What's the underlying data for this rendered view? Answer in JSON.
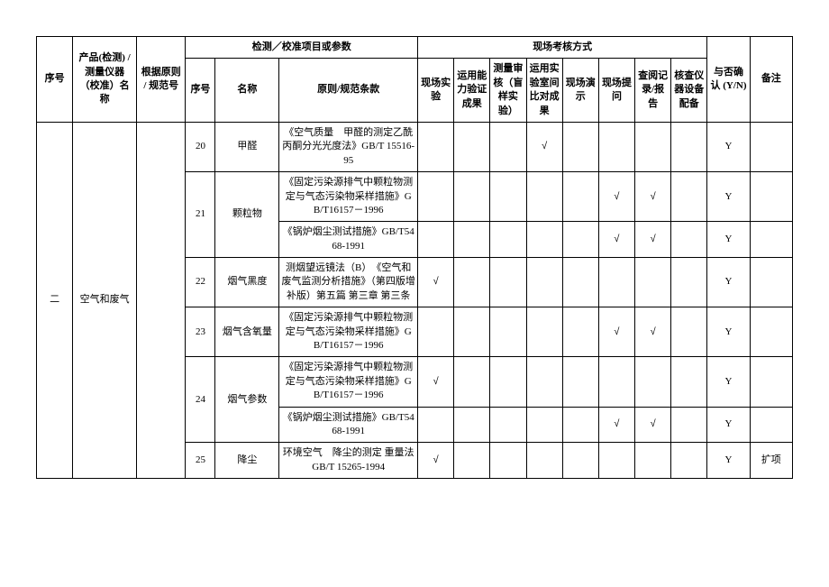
{
  "header": {
    "row1": {
      "seq": "序号",
      "product": "产品(检测) / 测量仪器（校准）名称",
      "basis": "根据原则 / 规范号",
      "detect_group": "检测／校准项目或参数",
      "assess_group": "现场考核方式",
      "confirm": "与否确认 (Y/N)",
      "remark": "备注"
    },
    "row2": {
      "sub_seq": "序号",
      "name": "名称",
      "clause": "原则/规范条款",
      "a1": "现场实验",
      "a2": "运用能力验证成果",
      "a3": "测量审核（盲样实验）",
      "a4": "运用实验室间比对成果",
      "a5": "现场演示",
      "a6": "现场提问",
      "a7": "查阅记录/报告",
      "a8": "核查仪器设备配备"
    }
  },
  "body": {
    "main_seq": "二",
    "product": "空气和废气",
    "rows": [
      {
        "sub_seq": "20",
        "name": "甲醛",
        "clause": "《空气质量　甲醛的测定乙酰丙酮分光光度法》GB/T 15516-95",
        "a": [
          "",
          "",
          "",
          "√",
          "",
          "",
          "",
          ""
        ],
        "confirm": "Y",
        "remark": ""
      },
      {
        "sub_seq": "21",
        "name": "颗粒物",
        "clause": "《固定污染源排气中颗粒物测定与气态污染物采样措施》GB/T16157－1996",
        "a": [
          "",
          "",
          "",
          "",
          "",
          "√",
          "√",
          ""
        ],
        "confirm": "Y",
        "remark": ""
      },
      {
        "sub_seq": "",
        "name": "",
        "clause": "《锅炉烟尘测试措施》GB/T5468-1991",
        "a": [
          "",
          "",
          "",
          "",
          "",
          "√",
          "√",
          ""
        ],
        "confirm": "Y",
        "remark": ""
      },
      {
        "sub_seq": "22",
        "name": "烟气黑度",
        "clause": "测烟望远镜法（B）　《空气和废气监测分析措施》（第四版增补版）第五篇 第三章 第三条",
        "a": [
          "√",
          "",
          "",
          "",
          "",
          "",
          "",
          ""
        ],
        "confirm": "Y",
        "remark": ""
      },
      {
        "sub_seq": "23",
        "name": "烟气含氧量",
        "clause": "《固定污染源排气中颗粒物测定与气态污染物采样措施》GB/T16157－1996",
        "a": [
          "",
          "",
          "",
          "",
          "",
          "√",
          "√",
          ""
        ],
        "confirm": "Y",
        "remark": ""
      },
      {
        "sub_seq": "24",
        "name": "烟气参数",
        "clause": "《固定污染源排气中颗粒物测定与气态污染物采样措施》GB/T16157－1996",
        "a": [
          "√",
          "",
          "",
          "",
          "",
          "",
          "",
          ""
        ],
        "confirm": "Y",
        "remark": ""
      },
      {
        "sub_seq": "",
        "name": "",
        "clause": "《锅炉烟尘测试措施》GB/T5468-1991",
        "a": [
          "",
          "",
          "",
          "",
          "",
          "√",
          "√",
          ""
        ],
        "confirm": "Y",
        "remark": ""
      },
      {
        "sub_seq": "25",
        "name": "降尘",
        "clause": "环境空气　降尘的测定 重量法 GB/T 15265-1994",
        "a": [
          "√",
          "",
          "",
          "",
          "",
          "",
          "",
          ""
        ],
        "confirm": "Y",
        "remark": "扩项"
      }
    ]
  },
  "colwidths": [
    "34",
    "60",
    "46",
    "28",
    "60",
    "130",
    "34",
    "34",
    "34",
    "34",
    "34",
    "34",
    "34",
    "34",
    "40",
    "40"
  ]
}
